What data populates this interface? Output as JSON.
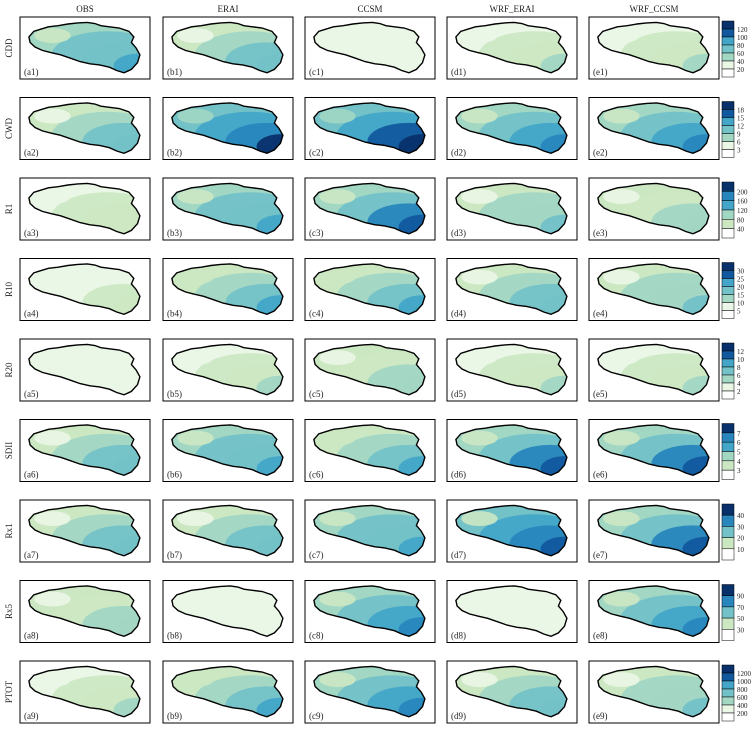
{
  "figure": {
    "columns": [
      "OBS",
      "ERAI",
      "CCSM",
      "WRF_ERAI",
      "WRF_CCSM"
    ],
    "palette": [
      "#ffffff",
      "#eaf6e6",
      "#cce8c3",
      "#a2d7c4",
      "#73c2c8",
      "#43a6c9",
      "#2886bd",
      "#11599e",
      "#08306b"
    ]
  },
  "chart_data": [
    {
      "type": "heatmap",
      "row_label": "CDD",
      "colorbar_ticks": [
        20,
        40,
        60,
        80,
        100,
        120
      ],
      "panel_labels": [
        "(a1)",
        "(b1)",
        "(c1)",
        "(d1)",
        "(e1)"
      ],
      "fill_level": [
        0.55,
        0.45,
        0.12,
        0.3,
        0.3
      ]
    },
    {
      "type": "heatmap",
      "row_label": "CWD",
      "colorbar_ticks": [
        3,
        6,
        9,
        12,
        15,
        18
      ],
      "panel_labels": [
        "(a2)",
        "(b2)",
        "(c2)",
        "(d2)",
        "(e2)"
      ],
      "fill_level": [
        0.45,
        0.8,
        0.85,
        0.65,
        0.65
      ]
    },
    {
      "type": "heatmap",
      "row_label": "R1",
      "colorbar_ticks": [
        40,
        80,
        120,
        160,
        200
      ],
      "panel_labels": [
        "(a3)",
        "(b3)",
        "(c3)",
        "(d3)",
        "(e3)"
      ],
      "fill_level": [
        0.25,
        0.55,
        0.7,
        0.4,
        0.35
      ]
    },
    {
      "type": "heatmap",
      "row_label": "R10",
      "colorbar_ticks": [
        5,
        10,
        15,
        20,
        25,
        30
      ],
      "panel_labels": [
        "(a4)",
        "(b4)",
        "(c4)",
        "(d4)",
        "(e4)"
      ],
      "fill_level": [
        0.2,
        0.5,
        0.5,
        0.45,
        0.4
      ]
    },
    {
      "type": "heatmap",
      "row_label": "R20",
      "colorbar_ticks": [
        2,
        4,
        6,
        8,
        10,
        12
      ],
      "panel_labels": [
        "(a5)",
        "(b5)",
        "(c5)",
        "(d5)",
        "(e5)"
      ],
      "fill_level": [
        0.1,
        0.3,
        0.35,
        0.3,
        0.3
      ]
    },
    {
      "type": "heatmap",
      "row_label": "SDII",
      "colorbar_ticks": [
        3,
        4,
        5,
        6,
        7
      ],
      "panel_labels": [
        "(a6)",
        "(b6)",
        "(c6)",
        "(d6)",
        "(e6)"
      ],
      "fill_level": [
        0.45,
        0.55,
        0.5,
        0.7,
        0.7
      ]
    },
    {
      "type": "heatmap",
      "row_label": "Rx1",
      "colorbar_ticks": [
        10,
        20,
        30,
        40
      ],
      "panel_labels": [
        "(a7)",
        "(b7)",
        "(c7)",
        "(d7)",
        "(e7)"
      ],
      "fill_level": [
        0.45,
        0.45,
        0.55,
        0.75,
        0.7
      ]
    },
    {
      "type": "heatmap",
      "row_label": "Rx5",
      "colorbar_ticks": [
        30,
        50,
        70,
        90
      ],
      "panel_labels": [
        "(a8)",
        "(b8)",
        "(c8)",
        "(d8)",
        "(e8)"
      ],
      "fill_level": [
        0.35,
        0.15,
        0.6,
        0.15,
        0.65
      ]
    },
    {
      "type": "heatmap",
      "row_label": "PTOT",
      "colorbar_ticks": [
        200,
        400,
        600,
        800,
        1000,
        1200
      ],
      "panel_labels": [
        "(a9)",
        "(b9)",
        "(c9)",
        "(d9)",
        "(e9)"
      ],
      "fill_level": [
        0.3,
        0.5,
        0.6,
        0.45,
        0.4
      ]
    }
  ]
}
